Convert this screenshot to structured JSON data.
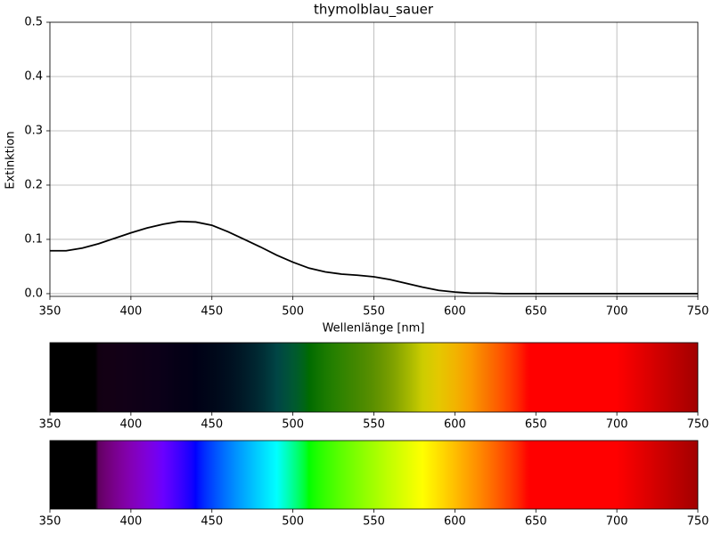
{
  "chart_data": [
    {
      "type": "line",
      "title": "thymolblau_sauer",
      "xlabel": "Wellenlänge [nm]",
      "ylabel": "Extinktion",
      "x": [
        350,
        360,
        370,
        380,
        390,
        400,
        410,
        420,
        430,
        440,
        450,
        460,
        470,
        480,
        490,
        500,
        510,
        520,
        530,
        540,
        550,
        560,
        570,
        580,
        590,
        600,
        610,
        620,
        630,
        640,
        650,
        660,
        670,
        680,
        690,
        700,
        710,
        720,
        730,
        740,
        750
      ],
      "values": [
        0.079,
        0.079,
        0.084,
        0.092,
        0.102,
        0.112,
        0.121,
        0.128,
        0.133,
        0.132,
        0.126,
        0.114,
        0.1,
        0.086,
        0.071,
        0.058,
        0.047,
        0.04,
        0.036,
        0.034,
        0.031,
        0.026,
        0.019,
        0.012,
        0.006,
        0.003,
        0.001,
        0.001,
        0,
        0,
        0,
        0,
        0,
        0,
        0,
        0,
        0,
        0,
        0,
        0,
        0
      ],
      "color": "#000000",
      "xlim": [
        350,
        750
      ],
      "ylim": [
        -0.005,
        0.5
      ],
      "xticks": [
        350,
        400,
        450,
        500,
        550,
        600,
        650,
        700,
        750
      ],
      "yticks": [
        {
          "value": 0,
          "label": "0.0"
        },
        0.1,
        0.2,
        0.3,
        0.4,
        0.5
      ],
      "grid": true
    },
    {
      "type": "transmission",
      "xlim": [
        350,
        750
      ],
      "xticks": [
        350,
        400,
        450,
        500,
        550,
        600,
        650,
        700,
        750
      ]
    },
    {
      "type": "spectrum",
      "xlim": [
        350,
        750
      ],
      "xticks": [
        350,
        400,
        450,
        500,
        550,
        600,
        650,
        700,
        750
      ]
    }
  ]
}
